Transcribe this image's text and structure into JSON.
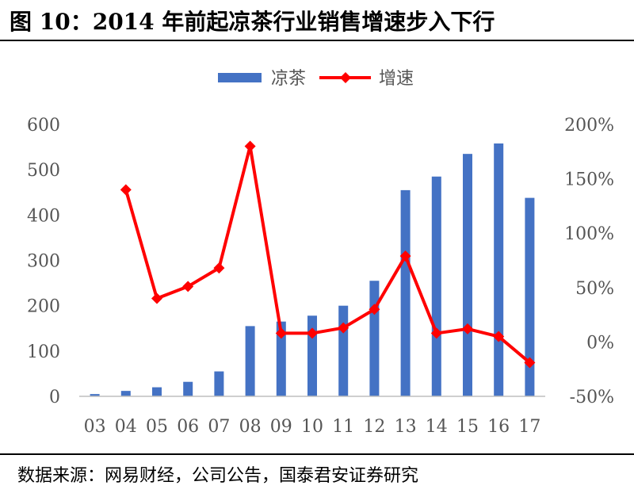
{
  "title": "图 10：2014 年前起凉茶行业销售增速步入下行",
  "source": "数据来源：网易财经，公司公告，国泰君安证券研究",
  "chart_data": {
    "type": "bar+line",
    "categories": [
      "03",
      "04",
      "05",
      "06",
      "07",
      "08",
      "09",
      "10",
      "11",
      "12",
      "13",
      "14",
      "15",
      "16",
      "17"
    ],
    "series": [
      {
        "name": "凉茶",
        "type": "bar",
        "axis": "left",
        "color": "#4472C4",
        "values": [
          5,
          12,
          20,
          32,
          55,
          155,
          165,
          178,
          200,
          255,
          455,
          485,
          535,
          558,
          438
        ]
      },
      {
        "name": "增速",
        "type": "line",
        "axis": "right",
        "color": "#FF0000",
        "marker": "diamond",
        "values": [
          null,
          140,
          40,
          51,
          68,
          180,
          8,
          8,
          13,
          30,
          79,
          8,
          12,
          5,
          -19
        ]
      }
    ],
    "y_left": {
      "min": 0,
      "max": 600,
      "ticks": [
        0,
        100,
        200,
        300,
        400,
        500,
        600
      ]
    },
    "y_right": {
      "min": -50,
      "max": 200,
      "ticks": [
        -50,
        0,
        50,
        100,
        150,
        200
      ],
      "tick_labels": [
        "-50%",
        "0%",
        "50%",
        "100%",
        "150%",
        "200%"
      ]
    },
    "legend": {
      "position": "top-center"
    },
    "grid": false
  }
}
